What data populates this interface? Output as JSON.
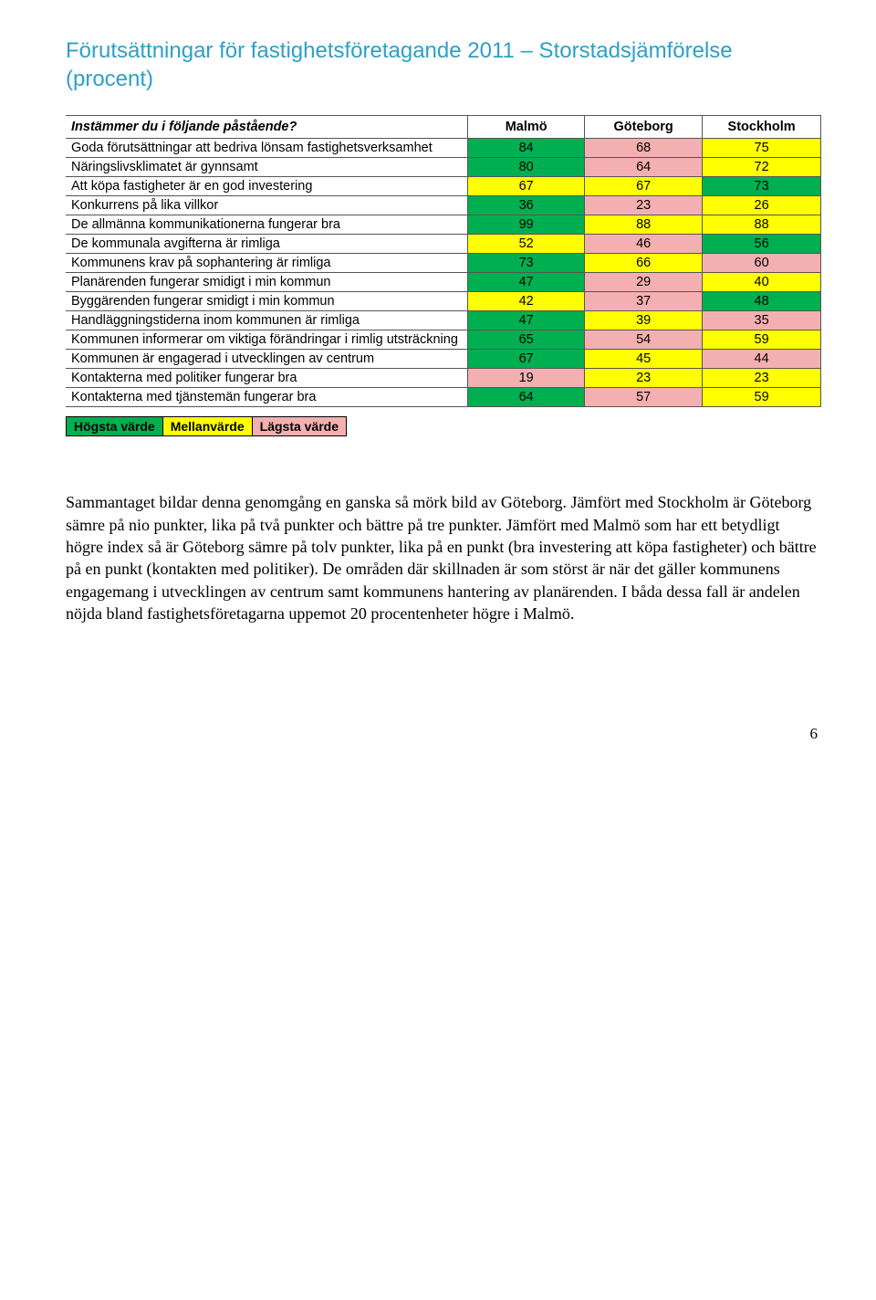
{
  "title": "Förutsättningar för fastighetsföretagande 2011 – Storstadsjämförelse (procent)",
  "table": {
    "header_label": "Instämmer du i följande påstående?",
    "columns": [
      "Malmö",
      "Göteborg",
      "Stockholm"
    ],
    "colors": {
      "high": "#00b050",
      "mid": "#ffff00",
      "low": "#f4b0b0"
    },
    "rows": [
      {
        "label": "Goda förutsättningar att bedriva lönsam fastighetsverksamhet",
        "cells": [
          {
            "v": "84",
            "c": "high"
          },
          {
            "v": "68",
            "c": "low"
          },
          {
            "v": "75",
            "c": "mid"
          }
        ]
      },
      {
        "label": "Näringslivsklimatet är gynnsamt",
        "cells": [
          {
            "v": "80",
            "c": "high"
          },
          {
            "v": "64",
            "c": "low"
          },
          {
            "v": "72",
            "c": "mid"
          }
        ]
      },
      {
        "label": "Att köpa fastigheter är en god investering",
        "cells": [
          {
            "v": "67",
            "c": "mid"
          },
          {
            "v": "67",
            "c": "mid"
          },
          {
            "v": "73",
            "c": "high"
          }
        ]
      },
      {
        "label": "Konkurrens på lika villkor",
        "cells": [
          {
            "v": "36",
            "c": "high"
          },
          {
            "v": "23",
            "c": "low"
          },
          {
            "v": "26",
            "c": "mid"
          }
        ]
      },
      {
        "label": "De allmänna kommunikationerna fungerar bra",
        "cells": [
          {
            "v": "99",
            "c": "high"
          },
          {
            "v": "88",
            "c": "mid"
          },
          {
            "v": "88",
            "c": "mid"
          }
        ]
      },
      {
        "label": "De kommunala avgifterna är rimliga",
        "cells": [
          {
            "v": "52",
            "c": "mid"
          },
          {
            "v": "46",
            "c": "low"
          },
          {
            "v": "56",
            "c": "high"
          }
        ]
      },
      {
        "label": "Kommunens krav på sophantering är rimliga",
        "cells": [
          {
            "v": "73",
            "c": "high"
          },
          {
            "v": "66",
            "c": "mid"
          },
          {
            "v": "60",
            "c": "low"
          }
        ]
      },
      {
        "label": "Planärenden fungerar smidigt i min kommun",
        "cells": [
          {
            "v": "47",
            "c": "high"
          },
          {
            "v": "29",
            "c": "low"
          },
          {
            "v": "40",
            "c": "mid"
          }
        ]
      },
      {
        "label": "Byggärenden fungerar smidigt i min kommun",
        "cells": [
          {
            "v": "42",
            "c": "mid"
          },
          {
            "v": "37",
            "c": "low"
          },
          {
            "v": "48",
            "c": "high"
          }
        ]
      },
      {
        "label": "Handläggningstiderna inom kommunen är rimliga",
        "cells": [
          {
            "v": "47",
            "c": "high"
          },
          {
            "v": "39",
            "c": "mid"
          },
          {
            "v": "35",
            "c": "low"
          }
        ]
      },
      {
        "label": "Kommunen informerar om viktiga förändringar i rimlig utsträckning",
        "cells": [
          {
            "v": "65",
            "c": "high"
          },
          {
            "v": "54",
            "c": "low"
          },
          {
            "v": "59",
            "c": "mid"
          }
        ]
      },
      {
        "label": "Kommunen är engagerad i utvecklingen av centrum",
        "cells": [
          {
            "v": "67",
            "c": "high"
          },
          {
            "v": "45",
            "c": "mid"
          },
          {
            "v": "44",
            "c": "low"
          }
        ]
      },
      {
        "label": "Kontakterna med politiker fungerar bra",
        "cells": [
          {
            "v": "19",
            "c": "low"
          },
          {
            "v": "23",
            "c": "mid"
          },
          {
            "v": "23",
            "c": "mid"
          }
        ]
      },
      {
        "label": "Kontakterna med tjänstemän fungerar bra",
        "cells": [
          {
            "v": "64",
            "c": "high"
          },
          {
            "v": "57",
            "c": "low"
          },
          {
            "v": "59",
            "c": "mid"
          }
        ]
      }
    ]
  },
  "legend": {
    "items": [
      {
        "label": "Högsta värde",
        "color": "#00b050"
      },
      {
        "label": "Mellanvärde",
        "color": "#ffff00"
      },
      {
        "label": "Lägsta värde",
        "color": "#f4b0b0"
      }
    ]
  },
  "body_text": "Sammantaget bildar denna genomgång en ganska så mörk bild av Göteborg. Jämfört med Stockholm är Göteborg sämre på nio punkter, lika på två punkter och bättre på tre punkter. Jämfört med Malmö som har ett betydligt högre index så är Göteborg sämre på tolv punkter, lika på en punkt (bra investering att köpa fastigheter) och bättre på en punkt (kontakten med politiker). De områden där skillnaden är som störst är när det gäller kommunens engagemang i utvecklingen av centrum samt kommunens hantering av planärenden. I båda dessa fall är andelen nöjda bland fastighetsföretagarna uppemot 20 procentenheter högre i Malmö.",
  "page_number": "6"
}
